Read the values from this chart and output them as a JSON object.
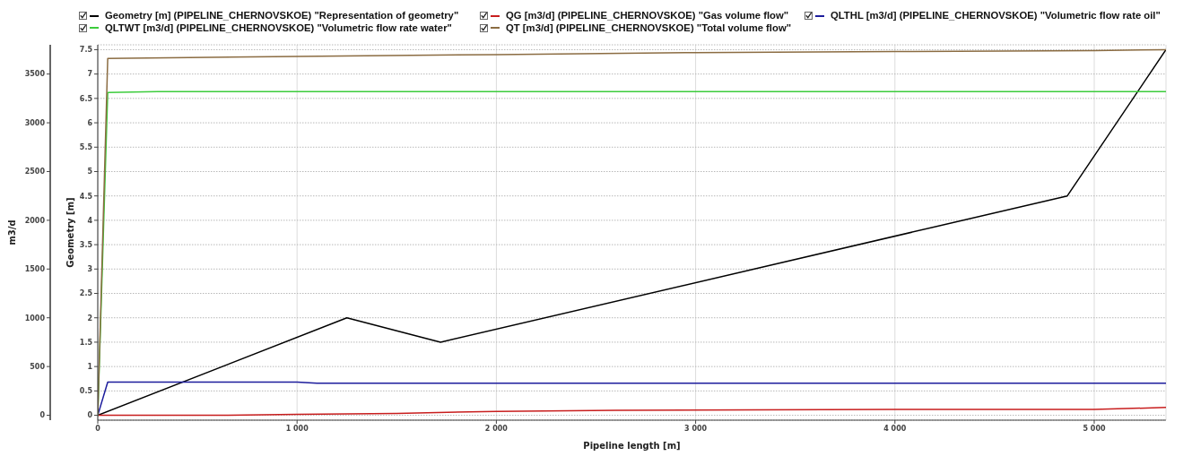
{
  "chart_data": {
    "type": "line",
    "xlabel": "Pipeline length [m]",
    "ylabel": "m3/d",
    "y2label": "Geometry [m]",
    "xlim": [
      0,
      5360
    ],
    "xticks": [
      0,
      {
        "value": 1000,
        "label": "1 000"
      },
      {
        "value": 2000,
        "label": "2 000"
      },
      {
        "value": 3000,
        "label": "3 000"
      },
      {
        "value": 4000,
        "label": "4 000"
      },
      {
        "value": 5000,
        "label": "5 000"
      }
    ],
    "ylim": [
      -50,
      3800
    ],
    "yticks": [
      0,
      500,
      1000,
      1500,
      2000,
      2500,
      3000,
      3500
    ],
    "y2lim": [
      -0.1,
      7.6
    ],
    "y2ticks": [
      0,
      0.5,
      1,
      1.5,
      2,
      2.5,
      3,
      3.5,
      4,
      4.5,
      5,
      5.5,
      6,
      6.5,
      7,
      7.5
    ],
    "grid": true,
    "legend": "top",
    "marker": "none",
    "line_style": "solid",
    "series": [
      {
        "name": "Geometry [m] (PIPELINE_CHERNOVSKOE) \"Representation of geometry\"",
        "color": "#000000",
        "axis": "y2",
        "x": [
          0,
          1250,
          1720,
          4865,
          5360
        ],
        "values": [
          0,
          2.0,
          1.5,
          4.5,
          7.5
        ]
      },
      {
        "name": "QG [m3/d] (PIPELINE_CHERNOVSKOE) \"Gas volume flow\"",
        "color": "#c81e1e",
        "x": [
          0,
          600,
          1000,
          1500,
          2000,
          2600,
          4000,
          5000,
          5360
        ],
        "values": [
          0,
          0,
          10,
          20,
          40,
          50,
          60,
          60,
          80
        ]
      },
      {
        "name": "QLTHL [m3/d] (PIPELINE_CHERNOVSKOE) \"Volumetric flow rate oil\"",
        "color": "#1c1c9c",
        "x": [
          0,
          50,
          1000,
          1100,
          5360
        ],
        "values": [
          0,
          340,
          340,
          330,
          330
        ]
      },
      {
        "name": "QLTWT [m3/d] (PIPELINE_CHERNOVSKOE) \"Volumetric flow rate water\"",
        "color": "#3ccc3c",
        "x": [
          0,
          50,
          300,
          5360
        ],
        "values": [
          0,
          3310,
          3320,
          3320
        ]
      },
      {
        "name": "QT [m3/d] (PIPELINE_CHERNOVSKOE) \"Total volume flow\"",
        "color": "#8b6c42",
        "x": [
          0,
          50,
          1000,
          2000,
          3000,
          4000,
          5000,
          5360
        ],
        "values": [
          0,
          3660,
          3680,
          3700,
          3720,
          3730,
          3740,
          3750
        ]
      }
    ]
  }
}
